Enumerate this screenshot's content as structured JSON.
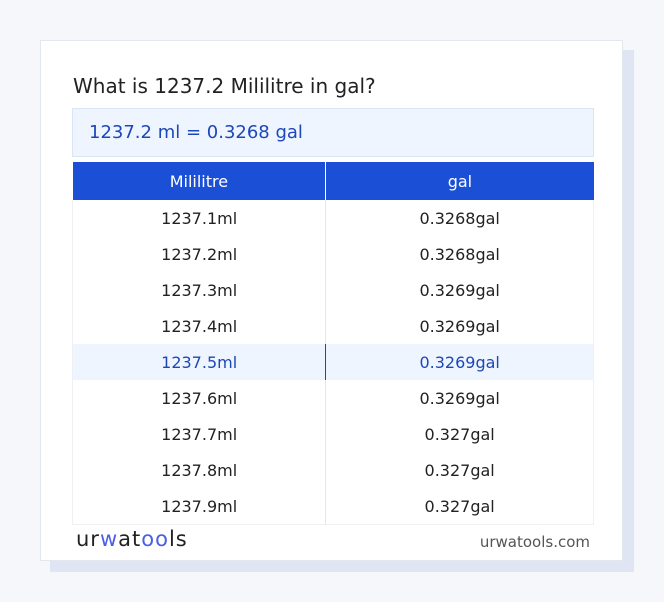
{
  "title": "What is 1237.2 Mililitre in gal?",
  "result": "1237.2 ml = 0.3268 gal",
  "table": {
    "headers": [
      "Mililitre",
      "gal"
    ],
    "rows": [
      [
        "1237.1ml",
        "0.3268gal"
      ],
      [
        "1237.2ml",
        "0.3268gal"
      ],
      [
        "1237.3ml",
        "0.3269gal"
      ],
      [
        "1237.4ml",
        "0.3269gal"
      ],
      [
        "1237.5ml",
        "0.3269gal"
      ],
      [
        "1237.6ml",
        "0.3269gal"
      ],
      [
        "1237.7ml",
        "0.327gal"
      ],
      [
        "1237.8ml",
        "0.327gal"
      ],
      [
        "1237.9ml",
        "0.327gal"
      ]
    ],
    "highlighted_row": 4
  },
  "footer": {
    "logo": "urwatools",
    "site": "urwatools.com"
  },
  "colors": {
    "accent": "#1a4fd6",
    "highlight": "#eef5ff"
  }
}
